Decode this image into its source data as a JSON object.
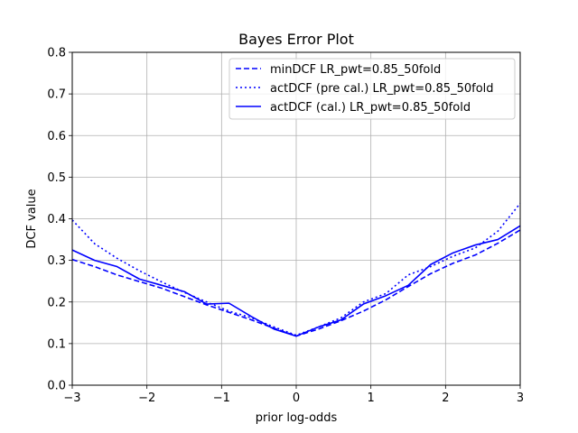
{
  "chart_data": {
    "type": "line",
    "title": "Bayes Error Plot",
    "xlabel": "prior log-odds",
    "ylabel": "DCF value",
    "xlim": [
      -3,
      3
    ],
    "ylim": [
      0,
      0.8
    ],
    "xticks": [
      -3,
      -2,
      -1,
      0,
      1,
      2,
      3
    ],
    "yticks": [
      0.0,
      0.1,
      0.2,
      0.3,
      0.4,
      0.5,
      0.6,
      0.7,
      0.8
    ],
    "xtick_labels": [
      "−3",
      "−2",
      "−1",
      "0",
      "1",
      "2",
      "3"
    ],
    "ytick_labels": [
      "0.0",
      "0.1",
      "0.2",
      "0.3",
      "0.4",
      "0.5",
      "0.6",
      "0.7",
      "0.8"
    ],
    "grid": true,
    "legend_position": "top-right",
    "series_color": "#0000ff",
    "series": [
      {
        "name": "minDCF LR_pwt=0.85_50fold",
        "style": "dashed",
        "x": [
          -3.0,
          -2.7,
          -2.4,
          -2.1,
          -1.8,
          -1.5,
          -1.2,
          -0.9,
          -0.6,
          -0.3,
          0.0,
          0.3,
          0.6,
          0.9,
          1.2,
          1.5,
          1.8,
          2.1,
          2.4,
          2.7,
          3.0
        ],
        "y": [
          0.302,
          0.285,
          0.265,
          0.249,
          0.233,
          0.213,
          0.193,
          0.175,
          0.157,
          0.137,
          0.118,
          0.135,
          0.155,
          0.178,
          0.205,
          0.237,
          0.268,
          0.293,
          0.313,
          0.341,
          0.373
        ]
      },
      {
        "name": "actDCF (pre cal.) LR_pwt=0.85_50fold",
        "style": "dotted",
        "x": [
          -3.0,
          -2.7,
          -2.4,
          -2.1,
          -1.8,
          -1.5,
          -1.2,
          -0.9,
          -0.6,
          -0.3,
          0.0,
          0.3,
          0.6,
          0.9,
          1.2,
          1.5,
          1.8,
          2.1,
          2.4,
          2.7,
          3.0
        ],
        "y": [
          0.397,
          0.34,
          0.305,
          0.275,
          0.248,
          0.223,
          0.2,
          0.178,
          0.162,
          0.14,
          0.12,
          0.14,
          0.162,
          0.2,
          0.22,
          0.265,
          0.285,
          0.31,
          0.33,
          0.37,
          0.437
        ]
      },
      {
        "name": "actDCF (cal.) LR_pwt=0.85_50fold",
        "style": "solid",
        "x": [
          -3.0,
          -2.7,
          -2.4,
          -2.1,
          -1.8,
          -1.5,
          -1.2,
          -0.9,
          -0.6,
          -0.3,
          0.0,
          0.3,
          0.6,
          0.9,
          1.2,
          1.5,
          1.8,
          2.1,
          2.4,
          2.7,
          3.0
        ],
        "y": [
          0.325,
          0.3,
          0.285,
          0.255,
          0.24,
          0.225,
          0.195,
          0.197,
          0.165,
          0.135,
          0.118,
          0.14,
          0.157,
          0.195,
          0.215,
          0.24,
          0.29,
          0.318,
          0.337,
          0.35,
          0.383
        ]
      }
    ]
  }
}
